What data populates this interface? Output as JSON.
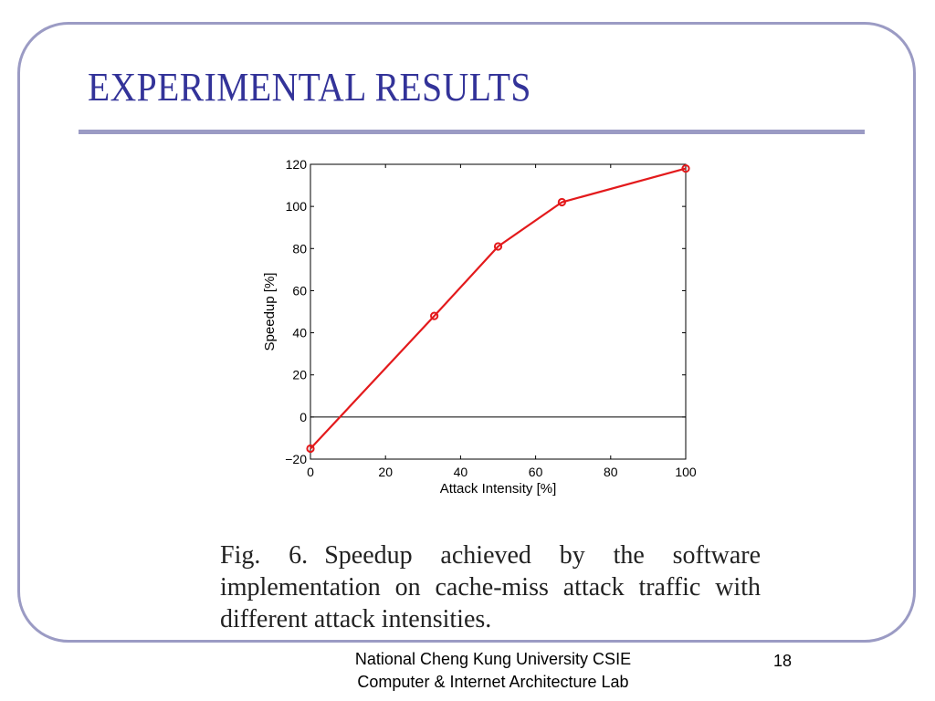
{
  "slide": {
    "title": "EXPERIMENTAL RESULTS",
    "page_number": "18",
    "colors": {
      "title": "#333399",
      "border": "#9b9bc4",
      "series": "#e31a1c"
    }
  },
  "caption": {
    "label": "Fig. 6.",
    "text": "Speedup achieved by the software implementation on cache-miss attack traffic with different attack intensities."
  },
  "footer": {
    "line1": "National Cheng Kung University CSIE",
    "line2": "Computer & Internet Architecture Lab"
  },
  "chart_data": {
    "type": "line",
    "title": "",
    "xlabel": "Attack Intensity [%]",
    "ylabel": "Speedup [%]",
    "xlim": [
      0,
      100
    ],
    "ylim": [
      -20,
      120
    ],
    "xticks": [
      0,
      20,
      40,
      60,
      80,
      100
    ],
    "yticks": [
      -20,
      0,
      20,
      40,
      60,
      80,
      100,
      120
    ],
    "xtick_labels": [
      "0",
      "20",
      "40",
      "60",
      "80",
      "100"
    ],
    "ytick_labels": [
      "−20",
      "0",
      "20",
      "40",
      "60",
      "80",
      "100",
      "120"
    ],
    "grid": false,
    "zero_line": true,
    "marker": "circle",
    "series": [
      {
        "x": [
          0,
          33,
          50,
          67,
          100
        ],
        "y": [
          -15,
          48,
          81,
          102,
          118
        ],
        "color": "#e31a1c"
      }
    ]
  }
}
